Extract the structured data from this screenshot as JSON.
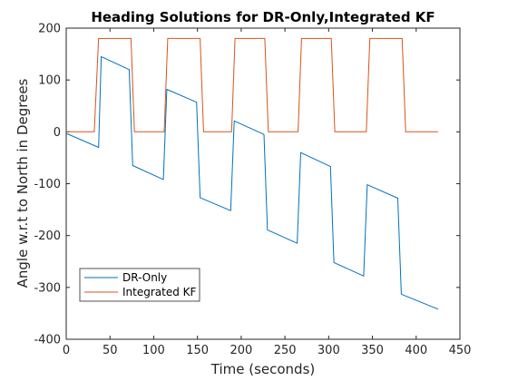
{
  "chart_data": {
    "type": "line",
    "title": "Heading Solutions for DR-Only,Integrated KF",
    "xlabel": "Time (seconds)",
    "ylabel": "Angle w.r.t to North in Degrees",
    "xlim": [
      0,
      450
    ],
    "ylim": [
      -400,
      200
    ],
    "xticks": [
      0,
      50,
      100,
      150,
      200,
      250,
      300,
      350,
      400,
      450
    ],
    "yticks": [
      -400,
      -300,
      -200,
      -100,
      0,
      100,
      200
    ],
    "grid": false,
    "legend_position": "bottom-left",
    "series": [
      {
        "name": "DR-Only",
        "color": "#0072BD",
        "x": [
          0,
          37,
          40,
          72,
          76,
          111,
          115,
          149,
          153,
          188,
          192,
          226,
          230,
          264,
          268,
          302,
          306,
          340,
          344,
          379,
          383,
          425
        ],
        "y": [
          -3,
          -30,
          145,
          120,
          -65,
          -92,
          82,
          57,
          -127,
          -152,
          21,
          -5,
          -189,
          -215,
          -40,
          -67,
          -252,
          -278,
          -102,
          -128,
          -313,
          -342
        ]
      },
      {
        "name": "Integrated KF",
        "color": "#D95319",
        "x": [
          0,
          32,
          37,
          74,
          78,
          112,
          116,
          153,
          157,
          189,
          193,
          227,
          231,
          265,
          269,
          303,
          307,
          343,
          347,
          384,
          388,
          425
        ],
        "y": [
          0,
          0,
          180,
          180,
          0,
          0,
          180,
          180,
          0,
          0,
          180,
          180,
          0,
          0,
          180,
          180,
          0,
          0,
          180,
          180,
          0,
          0
        ]
      }
    ]
  }
}
